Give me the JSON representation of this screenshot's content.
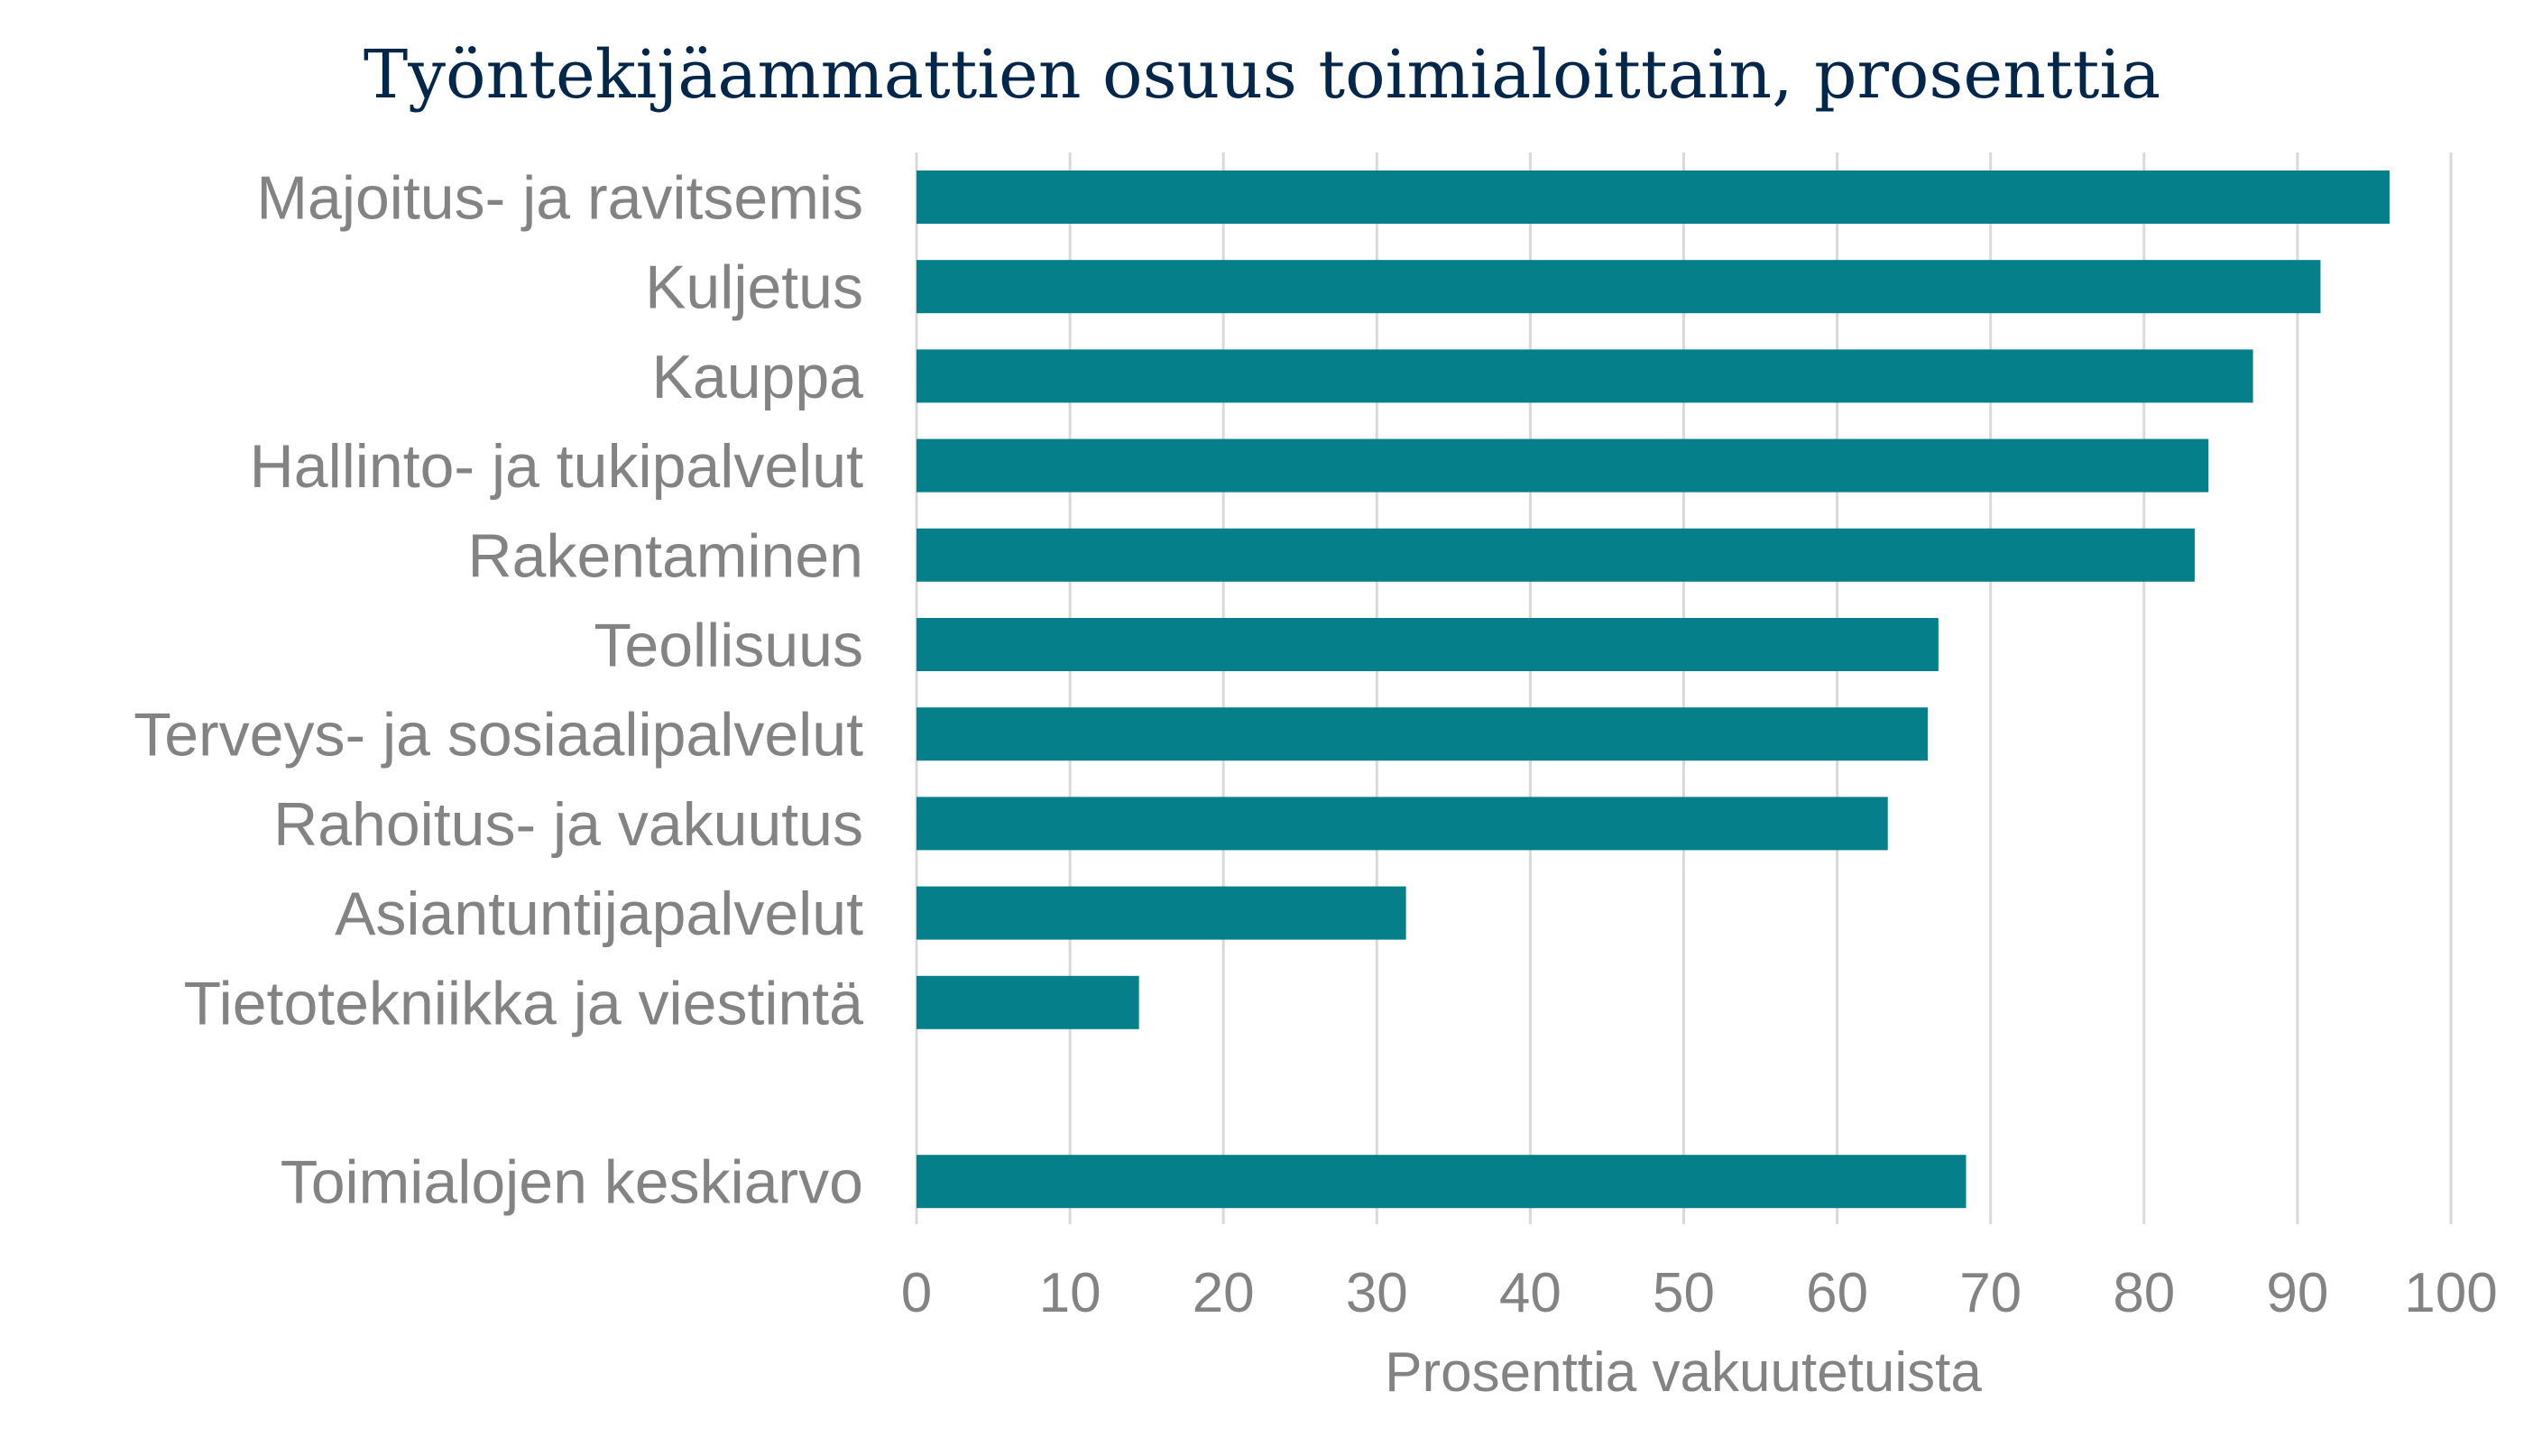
{
  "chart_data": {
    "type": "bar",
    "orientation": "horizontal",
    "title": "Työntekijäammattien osuus toimialoittain, prosenttia",
    "xlabel": "Prosenttia vakuutetuista",
    "ylabel": "",
    "xlim": [
      0,
      100
    ],
    "xticks": [
      0,
      10,
      20,
      30,
      40,
      50,
      60,
      70,
      80,
      90,
      100
    ],
    "xtick_labels": [
      "0",
      "10",
      "20",
      "30",
      "40",
      "50",
      "60",
      "70",
      "80",
      "90",
      "100"
    ],
    "grid": true,
    "legend": "none",
    "bar_color": "#057f89",
    "categories": [
      "Majoitus- ja ravitsemis",
      "Kuljetus",
      "Kauppa",
      "Hallinto- ja tukipalvelut",
      "Rakentaminen",
      "Teollisuus",
      "Terveys- ja sosiaalipalvelut",
      "Rahoitus- ja vakuutus",
      "Asiantuntijapalvelut",
      "Tietotekniikka ja viestintä",
      "",
      "Toimialojen keskiarvo"
    ],
    "values": [
      96.0,
      91.5,
      87.1,
      84.2,
      83.3,
      66.6,
      65.9,
      63.3,
      31.9,
      14.5,
      null,
      68.4
    ]
  }
}
